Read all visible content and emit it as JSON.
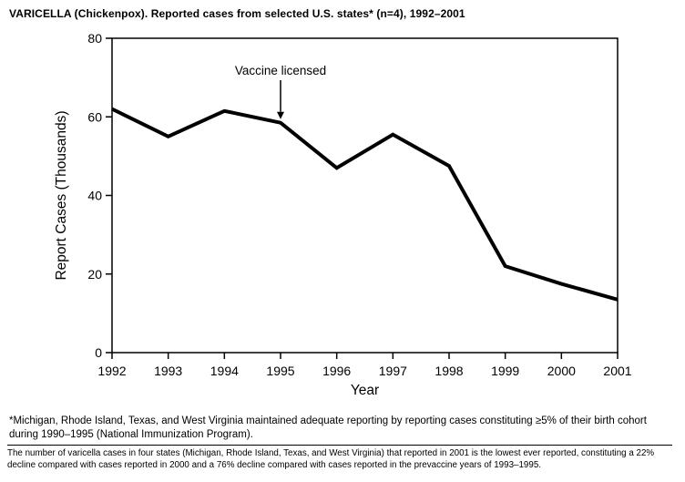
{
  "chart_data": {
    "type": "line",
    "title": "VARICELLA (Chickenpox). Reported cases from selected U.S. states* (n=4), 1992–2001",
    "x": [
      1992,
      1993,
      1994,
      1995,
      1996,
      1997,
      1998,
      1999,
      2000,
      2001
    ],
    "values": [
      62,
      55,
      61.5,
      58.5,
      47,
      55.5,
      47.5,
      22,
      17.5,
      13.5
    ],
    "xlabel": "Year",
    "ylabel": "Report Cases (Thousands)",
    "ylim": [
      0,
      80
    ],
    "yticks": [
      0,
      20,
      40,
      60,
      80
    ],
    "grid": false,
    "legend": "none",
    "line_color": "#000000",
    "line_width": 4,
    "annotation": {
      "text": "Vaccine licensed",
      "x": 1995,
      "arrow": true
    }
  },
  "footnotes": {
    "footnote1": "*Michigan, Rhode Island, Texas, and West Virginia maintained adequate reporting by reporting cases constituting ≥5% of their birth cohort during 1990–1995 (National Immunization Program).",
    "footnote2": "The number of varicella cases in four states (Michigan, Rhode Island, Texas, and West Virginia) that reported in 2001 is the lowest ever reported, constituting a 22% decline compared with cases reported in 2000 and a 76% decline compared with cases reported in the prevaccine years of 1993–1995."
  }
}
